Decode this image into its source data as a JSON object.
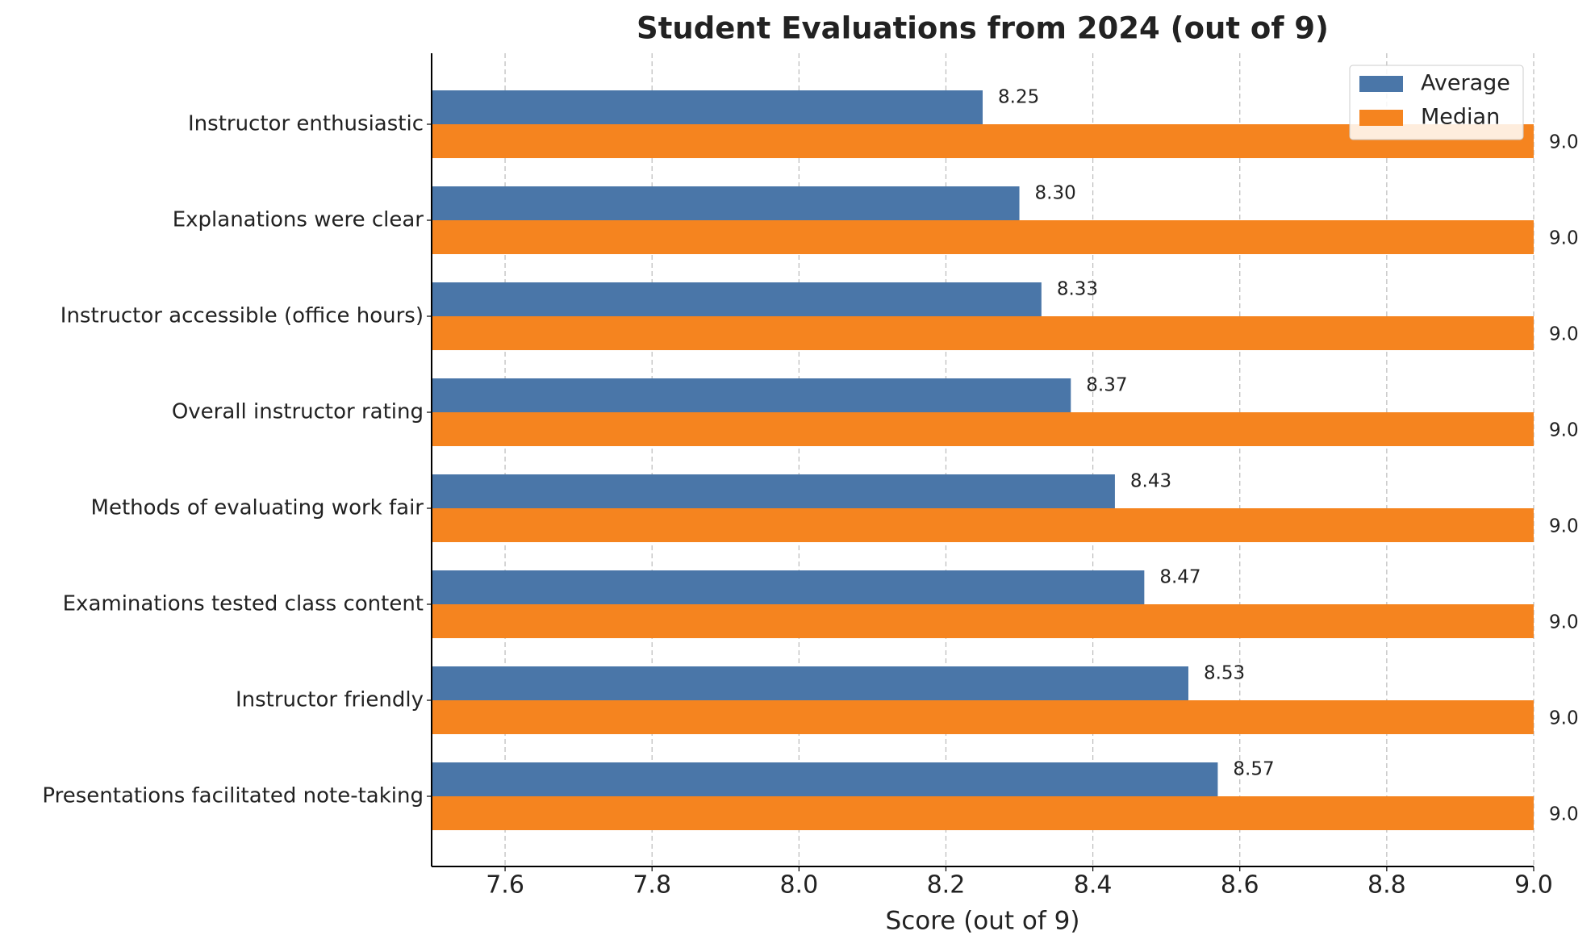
{
  "chart_data": {
    "type": "hbar",
    "title": "Student Evaluations from 2024 (out of 9)",
    "x_label": "Score (out of 9)",
    "categories": [
      "Instructor enthusiastic",
      "Explanations were clear",
      "Instructor accessible (office hours)",
      "Overall instructor rating",
      "Methods of evaluating work fair",
      "Examinations tested class content",
      "Instructor friendly",
      "Presentations facilitated note-taking"
    ],
    "series": [
      {
        "name": "Average",
        "color": "#4a76a8",
        "values": [
          8.25,
          8.3,
          8.33,
          8.37,
          8.43,
          8.47,
          8.53,
          8.57
        ],
        "value_labels": [
          "8.25",
          "8.30",
          "8.33",
          "8.37",
          "8.43",
          "8.47",
          "8.53",
          "8.57"
        ]
      },
      {
        "name": "Median",
        "color": "#f5841f",
        "values": [
          9,
          9,
          9,
          9,
          9,
          9,
          9,
          9
        ],
        "value_labels": [
          "9.0",
          "9.0",
          "9.0",
          "9.0",
          "9.0",
          "9.0",
          "9.0",
          "9.0"
        ]
      }
    ],
    "xlim": [
      7.5,
      9.0
    ],
    "xticks": [
      7.6,
      7.8,
      {
        "value": 8,
        "label": "8.0"
      },
      8.2,
      8.4,
      8.6,
      8.8,
      {
        "value": 9,
        "label": "9.0"
      }
    ],
    "grid": true,
    "legend": "upper right"
  }
}
